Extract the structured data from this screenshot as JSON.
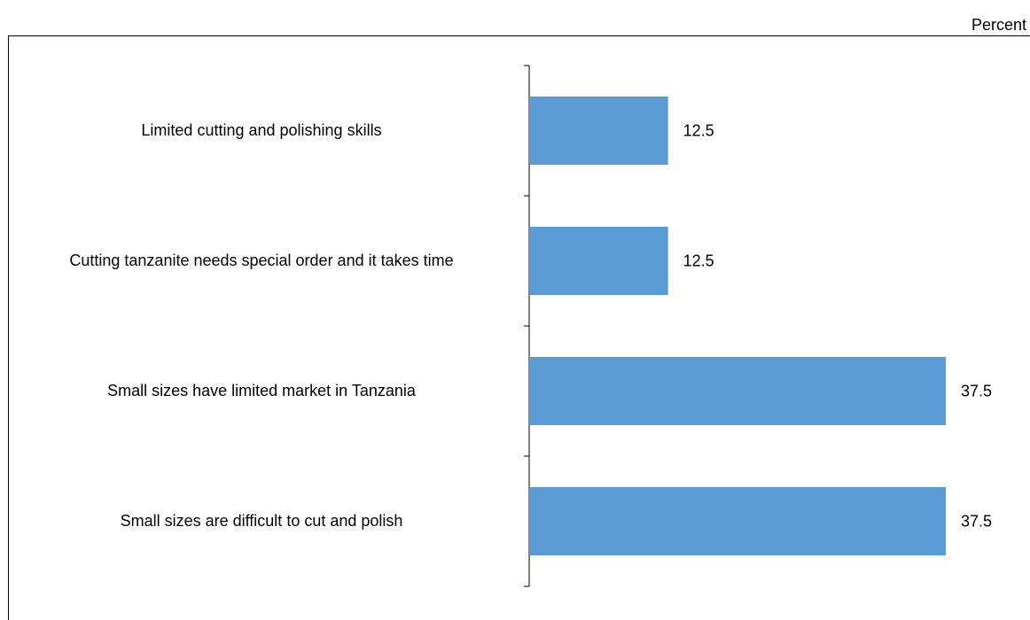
{
  "chart_data": {
    "type": "bar",
    "orientation": "horizontal",
    "unit_label": "Percent",
    "categories": [
      "Limited cutting and polishing skills",
      "Cutting tanzanite needs special order and it takes time",
      "Small sizes  have  limited market in Tanzania",
      "Small sizes are difficult to cut and polish"
    ],
    "values": [
      12.5,
      12.5,
      37.5,
      37.5
    ],
    "value_labels": [
      "12.5",
      "12.5",
      "37.5",
      "37.5"
    ],
    "bar_color": "#5b9bd5",
    "xlim": [
      0,
      37.5
    ]
  }
}
